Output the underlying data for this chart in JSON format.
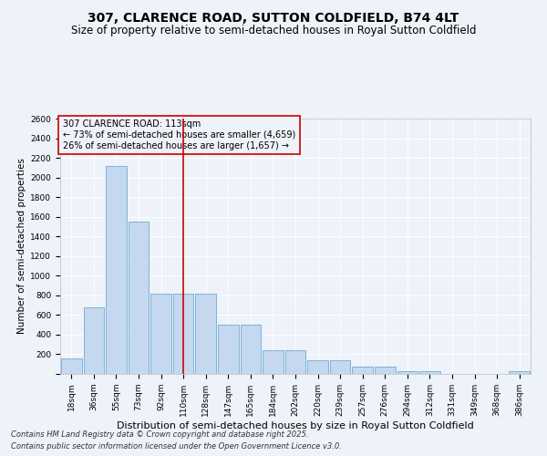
{
  "title": "307, CLARENCE ROAD, SUTTON COLDFIELD, B74 4LT",
  "subtitle": "Size of property relative to semi-detached houses in Royal Sutton Coldfield",
  "xlabel": "Distribution of semi-detached houses by size in Royal Sutton Coldfield",
  "ylabel": "Number of semi-detached properties",
  "categories": [
    "18sqm",
    "36sqm",
    "55sqm",
    "73sqm",
    "92sqm",
    "110sqm",
    "128sqm",
    "147sqm",
    "165sqm",
    "184sqm",
    "202sqm",
    "220sqm",
    "239sqm",
    "257sqm",
    "276sqm",
    "294sqm",
    "312sqm",
    "331sqm",
    "349sqm",
    "368sqm",
    "386sqm"
  ],
  "values": [
    160,
    680,
    2120,
    1550,
    820,
    820,
    820,
    500,
    500,
    240,
    240,
    140,
    140,
    70,
    70,
    30,
    30,
    0,
    0,
    0,
    30
  ],
  "bar_color": "#c5d8f0",
  "bar_edge_color": "#6baed6",
  "vline_x_index": 5,
  "vline_color": "#cc0000",
  "annotation_title": "307 CLARENCE ROAD: 113sqm",
  "annotation_line1": "← 73% of semi-detached houses are smaller (4,659)",
  "annotation_line2": "26% of semi-detached houses are larger (1,657) →",
  "annotation_box_color": "#cc0000",
  "ylim": [
    0,
    2600
  ],
  "yticks": [
    0,
    200,
    400,
    600,
    800,
    1000,
    1200,
    1400,
    1600,
    1800,
    2000,
    2200,
    2400,
    2600
  ],
  "background_color": "#eef2f9",
  "footnote1": "Contains HM Land Registry data © Crown copyright and database right 2025.",
  "footnote2": "Contains public sector information licensed under the Open Government Licence v3.0.",
  "title_fontsize": 10,
  "subtitle_fontsize": 8.5,
  "xlabel_fontsize": 8,
  "ylabel_fontsize": 7.5,
  "tick_fontsize": 6.5,
  "annotation_fontsize": 7,
  "footnote_fontsize": 6
}
